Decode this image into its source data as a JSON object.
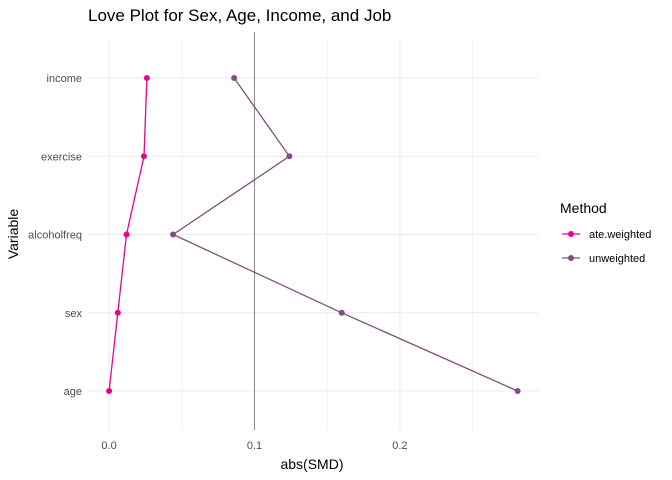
{
  "chart_data": {
    "type": "line",
    "title": "Love Plot for Sex, Age, Income, and Job",
    "xlabel": "abs(SMD)",
    "ylabel": "Variable",
    "categories": [
      "income",
      "exercise",
      "alcoholfreq",
      "sex",
      "age"
    ],
    "xlim": [
      -0.0145,
      0.295
    ],
    "xticks": [
      0.0,
      0.1,
      0.2
    ],
    "xtick_labels": [
      "0.0",
      "0.1",
      "0.2"
    ],
    "reference_line": 0.1,
    "grid": true,
    "legend": {
      "title": "Method",
      "position": "right"
    },
    "series": [
      {
        "name": "ate.weighted",
        "color": "#e7048a",
        "values": [
          0.026,
          0.024,
          0.012,
          0.006,
          0.0
        ]
      },
      {
        "name": "unweighted",
        "color": "#7f4f83",
        "values": [
          0.086,
          0.124,
          0.044,
          0.16,
          0.281
        ]
      }
    ]
  }
}
